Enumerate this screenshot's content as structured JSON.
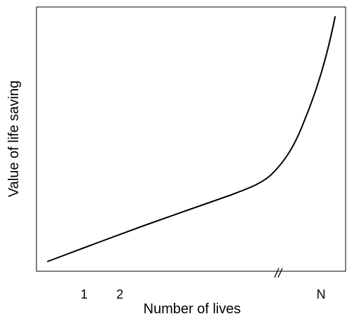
{
  "chart_data": {
    "type": "line",
    "title": "",
    "xlabel": "Number of lives",
    "ylabel": "Value of life saving",
    "x_tick_labels": [
      "1",
      "2",
      "N"
    ],
    "axis_break_symbol": "//",
    "y_ticks": [],
    "grid": false,
    "legend": "none",
    "series": [
      {
        "color": "#000000",
        "shape": "linear rise then sharp convex increase near N"
      }
    ]
  }
}
